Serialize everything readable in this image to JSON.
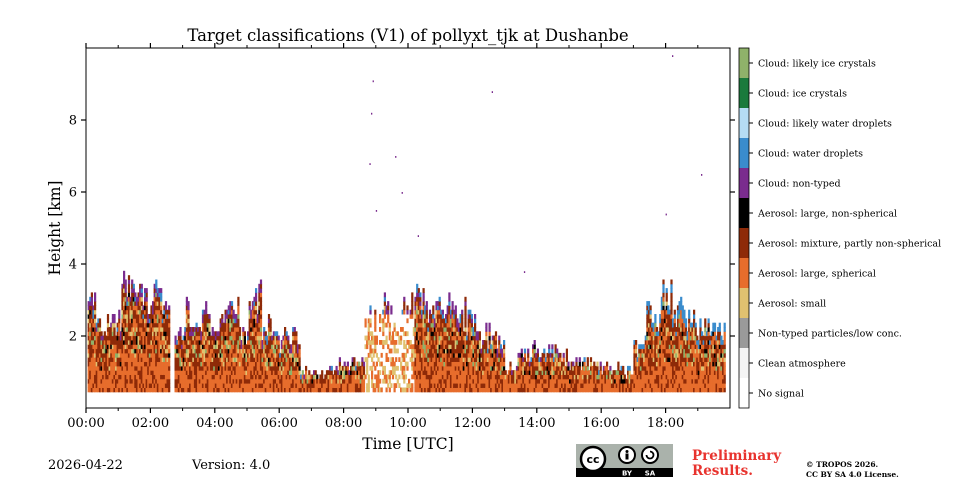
{
  "chart_data": {
    "type": "heatmap",
    "title": "Target classifications (V1) of pollyxt_tjk at Dushanbe",
    "xlabel": "Time [UTC]",
    "ylabel": "Height [km]",
    "xlim_hours": [
      0,
      20
    ],
    "ylim_km": [
      0,
      10
    ],
    "x_ticks": [
      {
        "value": 0,
        "label": "00:00"
      },
      {
        "value": 2,
        "label": "02:00"
      },
      {
        "value": 4,
        "label": "04:00"
      },
      {
        "value": 6,
        "label": "06:00"
      },
      {
        "value": 8,
        "label": "08:00"
      },
      {
        "value": 10,
        "label": "10:00"
      },
      {
        "value": 12,
        "label": "12:00"
      },
      {
        "value": 14,
        "label": "14:00"
      },
      {
        "value": 16,
        "label": "16:00"
      },
      {
        "value": 18,
        "label": "18:00"
      }
    ],
    "y_ticks": [
      {
        "value": 2,
        "label": "2"
      },
      {
        "value": 4,
        "label": "4"
      },
      {
        "value": 6,
        "label": "6"
      },
      {
        "value": 8,
        "label": "8"
      }
    ],
    "legend": [
      {
        "label": "Cloud: likely ice crystals",
        "color": "#8fb26a"
      },
      {
        "label": "Cloud: ice crystals",
        "color": "#1a7a3c"
      },
      {
        "label": "Cloud: likely water droplets",
        "color": "#b5dcf4"
      },
      {
        "label": "Cloud: water droplets",
        "color": "#3a8ccd"
      },
      {
        "label": "Cloud: non-typed",
        "color": "#7a2c8e"
      },
      {
        "label": "Aerosol: large, non-spherical",
        "color": "#000000"
      },
      {
        "label": "Aerosol: mixture, partly non-spherical",
        "color": "#8e2a08"
      },
      {
        "label": "Aerosol: large, spherical",
        "color": "#e76d2c"
      },
      {
        "label": "Aerosol: small",
        "color": "#e0c170"
      },
      {
        "label": "Non-typed particles/low conc.",
        "color": "#9a9a9a"
      },
      {
        "label": "Clean atmosphere",
        "color": "#f4f4f4"
      },
      {
        "label": "No signal",
        "color": "#ffffff"
      }
    ],
    "series": [
      {
        "name": "layer_top_km",
        "time_start": [
          0.0,
          0.35,
          0.8,
          1.1,
          2.0,
          2.55,
          2.7,
          3.0,
          3.5,
          3.9,
          4.3,
          4.7,
          5.0,
          5.4,
          5.8,
          6.2,
          6.6,
          7.0,
          7.4,
          7.8,
          8.2,
          8.6,
          9.0,
          9.4,
          9.8,
          10.2,
          10.6,
          11.0,
          11.4,
          11.8,
          12.2,
          12.6,
          13.0,
          13.4,
          13.8,
          14.2,
          14.6,
          15.0,
          15.4,
          15.8,
          16.2,
          16.6,
          17.0,
          17.4,
          17.8,
          18.2,
          18.6,
          19.0,
          19.4
        ],
        "top_km": [
          3.0,
          2.3,
          2.6,
          3.4,
          3.3,
          0.0,
          2.0,
          2.8,
          2.6,
          2.6,
          3.3,
          2.2,
          3.2,
          2.3,
          2.0,
          2.1,
          1.0,
          1.0,
          1.0,
          1.2,
          1.4,
          2.6,
          2.9,
          2.6,
          2.9,
          3.1,
          2.8,
          2.9,
          2.8,
          2.6,
          2.1,
          2.0,
          1.2,
          1.6,
          1.7,
          1.6,
          1.5,
          1.3,
          1.3,
          1.2,
          1.1,
          1.0,
          1.8,
          2.8,
          3.3,
          2.8,
          2.5,
          2.3,
          2.2
        ]
      }
    ]
  },
  "footer": {
    "date": "2026-04-22",
    "version": "Version: 4.0",
    "preliminary_line1": "Preliminary",
    "preliminary_line2": "Results.",
    "credit_line1": "© TROPOS 2026.",
    "credit_line2": "CC BY SA 4.0 License.",
    "cc_badge": {
      "cc": "cc",
      "by": "BY",
      "sa": "SA"
    }
  }
}
